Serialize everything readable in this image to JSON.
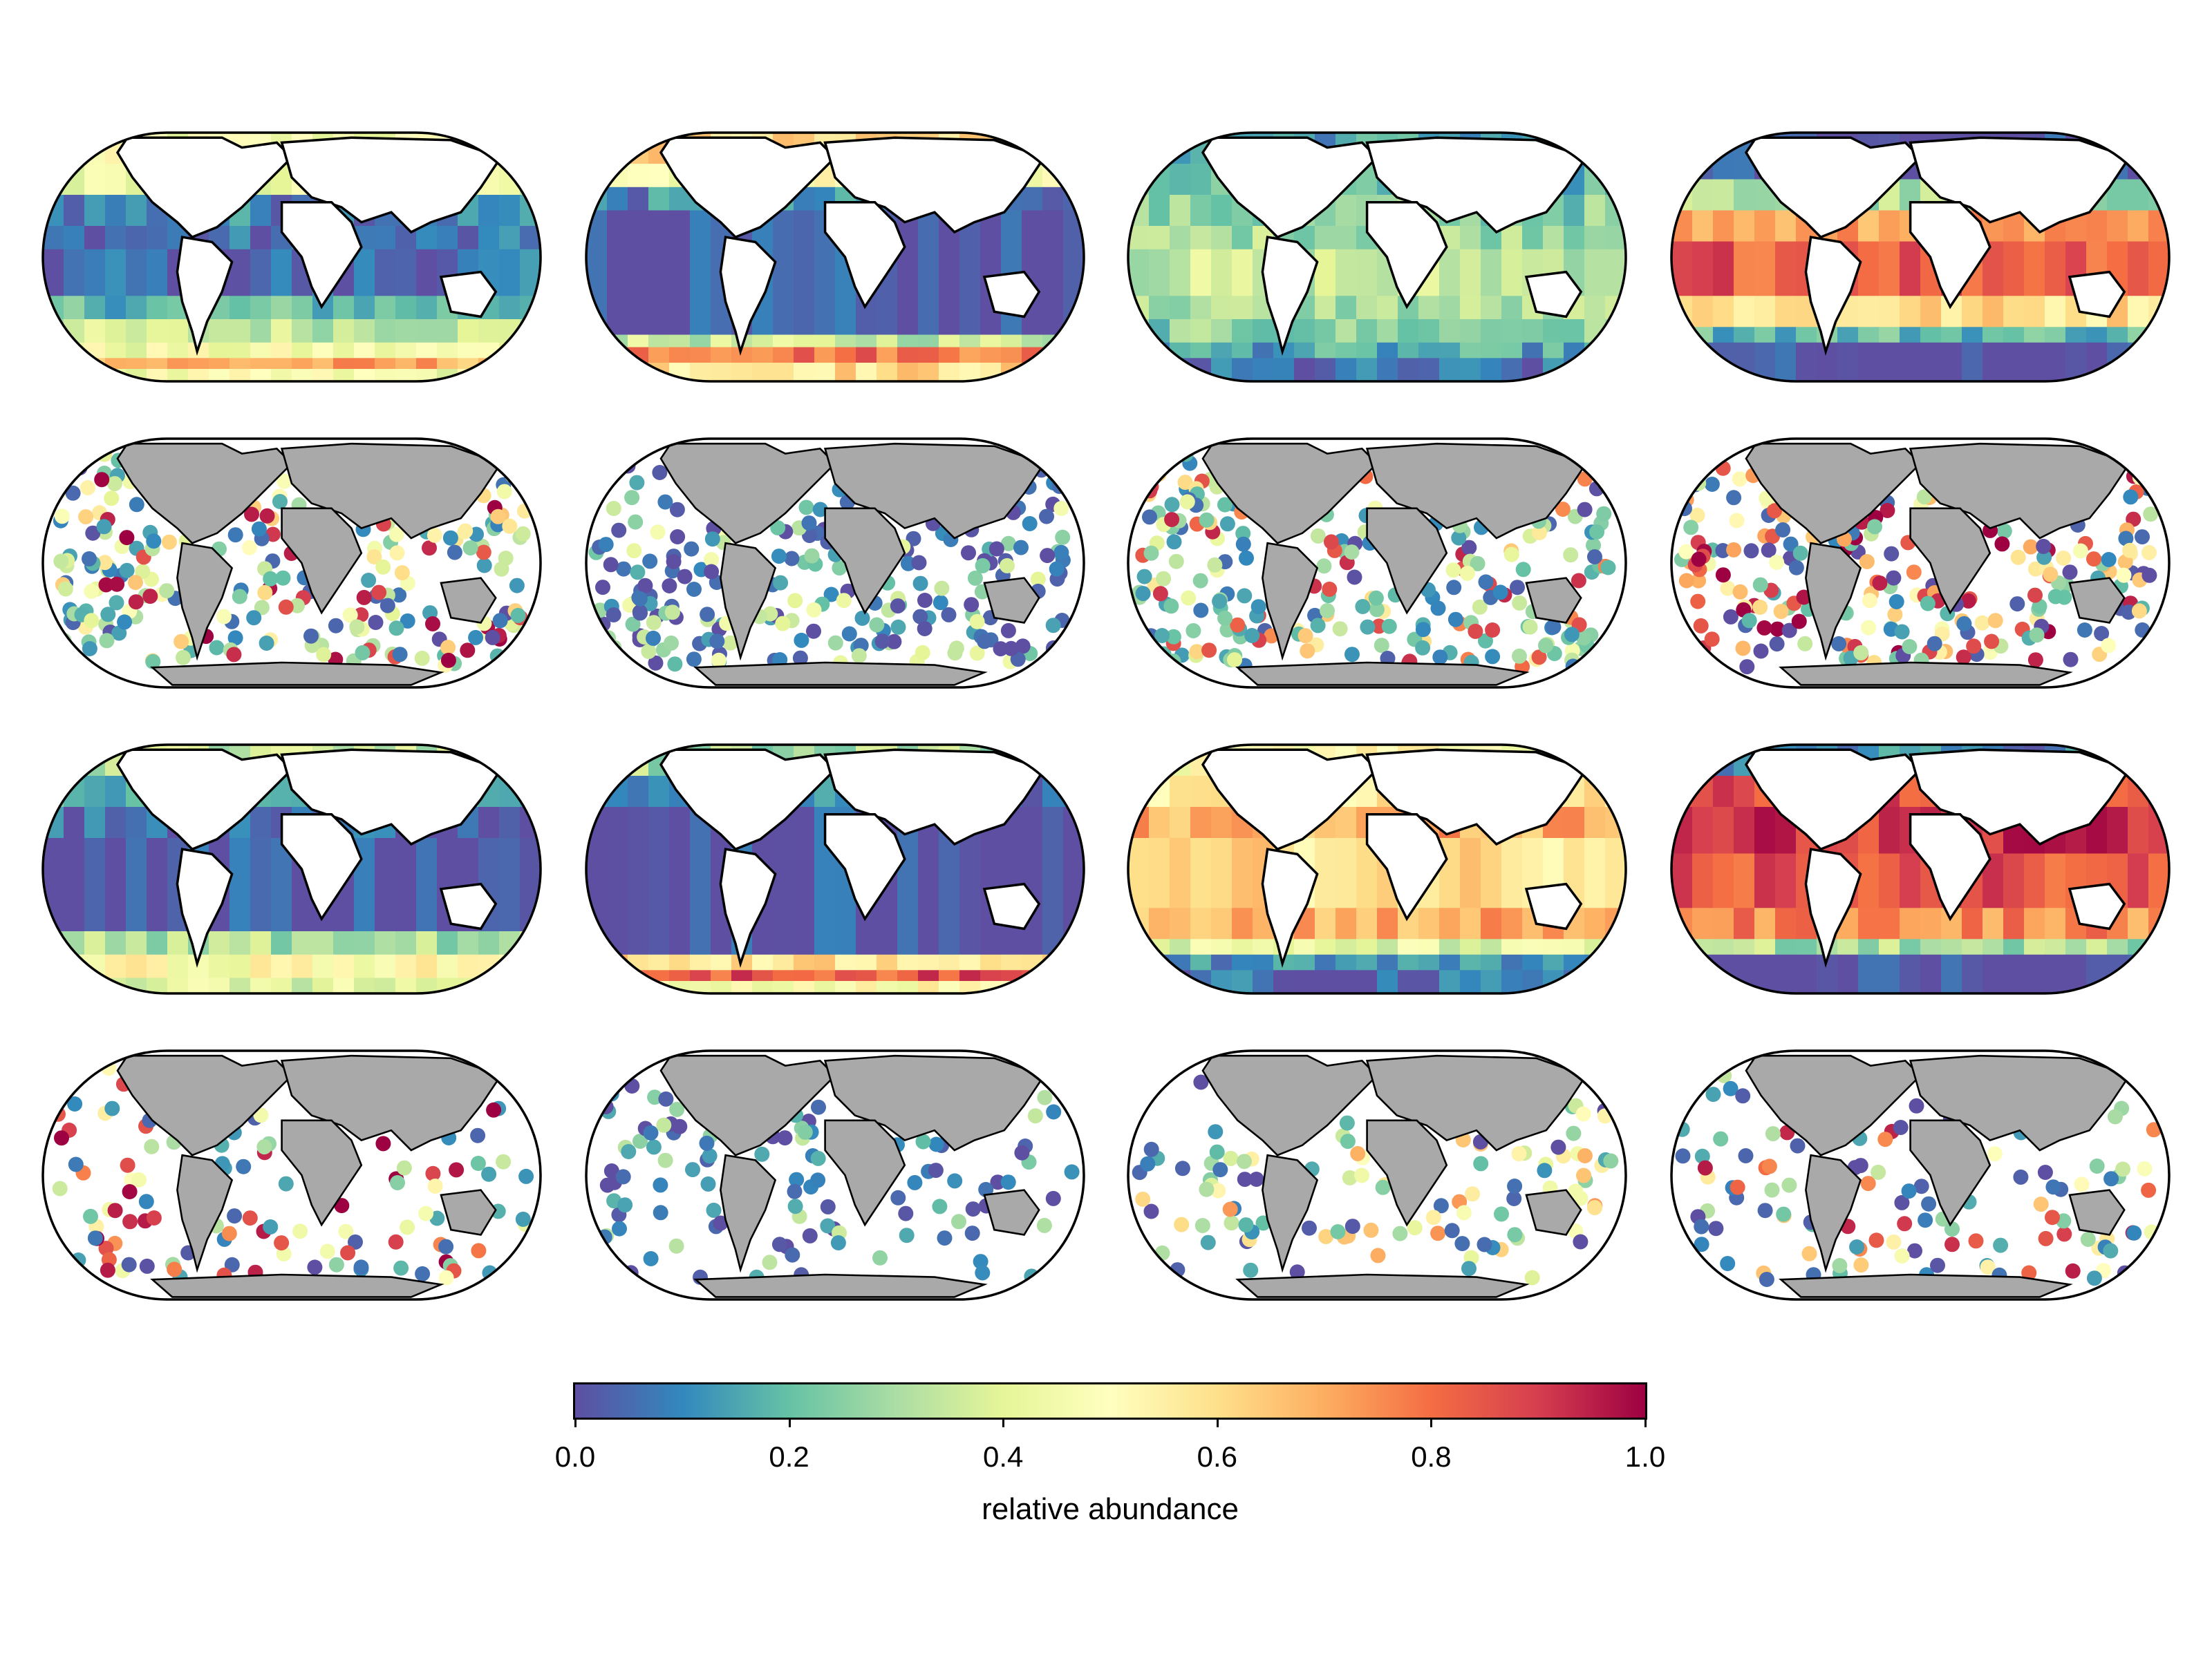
{
  "chart_data": {
    "type": "heatmap",
    "layout": "4 rows x 4 columns of global map panels",
    "colormap": "Spectral_r",
    "colorbar": {
      "label": "relative abundance",
      "range": [
        0.0,
        1.0
      ],
      "ticks": [
        0.0,
        0.2,
        0.4,
        0.6,
        0.8,
        1.0
      ],
      "tick_labels": [
        "0.0",
        "0.2",
        "0.4",
        "0.6",
        "0.8",
        "1.0"
      ],
      "stops": [
        "#5e4fa2",
        "#3288bd",
        "#66c2a5",
        "#abdda4",
        "#e6f598",
        "#ffffbf",
        "#fee08b",
        "#fdae61",
        "#f46d43",
        "#d53e4f",
        "#9e0142"
      ]
    },
    "panels": [
      {
        "row": 1,
        "col": 1,
        "style": "gridded",
        "bands": [
          [
            70,
            90,
            0.45
          ],
          [
            50,
            70,
            0.4
          ],
          [
            30,
            50,
            0.1
          ],
          [
            15,
            30,
            0.05
          ],
          [
            -15,
            15,
            0.05
          ],
          [
            -30,
            -15,
            0.2
          ],
          [
            -45,
            -30,
            0.35
          ],
          [
            -55,
            -45,
            0.45
          ],
          [
            -62,
            -55,
            0.7
          ],
          [
            -70,
            -62,
            0.45
          ]
        ]
      },
      {
        "row": 1,
        "col": 2,
        "style": "gridded",
        "bands": [
          [
            70,
            90,
            0.6
          ],
          [
            55,
            70,
            0.5
          ],
          [
            40,
            55,
            0.1
          ],
          [
            -40,
            40,
            0.0
          ],
          [
            -48,
            -40,
            0.35
          ],
          [
            -58,
            -48,
            0.8
          ],
          [
            -70,
            -58,
            0.6
          ]
        ]
      },
      {
        "row": 1,
        "col": 3,
        "style": "gridded",
        "bands": [
          [
            70,
            90,
            0.15
          ],
          [
            50,
            70,
            0.2
          ],
          [
            30,
            50,
            0.25
          ],
          [
            15,
            30,
            0.3
          ],
          [
            -15,
            15,
            0.35
          ],
          [
            -30,
            -15,
            0.3
          ],
          [
            -45,
            -30,
            0.25
          ],
          [
            -55,
            -45,
            0.15
          ],
          [
            -70,
            -55,
            0.05
          ]
        ]
      },
      {
        "row": 1,
        "col": 4,
        "style": "gridded",
        "bands": [
          [
            60,
            90,
            0.0
          ],
          [
            40,
            60,
            0.3
          ],
          [
            20,
            40,
            0.7
          ],
          [
            -15,
            20,
            0.85
          ],
          [
            -35,
            -15,
            0.6
          ],
          [
            -45,
            -35,
            0.2
          ],
          [
            -70,
            -45,
            0.0
          ]
        ]
      },
      {
        "row": 2,
        "col": 1,
        "style": "observed",
        "sample_values": [
          0.05,
          0.1,
          0.2,
          0.3,
          0.4,
          0.5,
          0.05,
          0.9,
          1.0,
          0.15,
          0.35,
          0.6
        ]
      },
      {
        "row": 2,
        "col": 2,
        "style": "observed",
        "sample_values": [
          0.0,
          0.05,
          0.1,
          0.0,
          0.2,
          0.4,
          0.05,
          0.0,
          0.3,
          0.1
        ]
      },
      {
        "row": 2,
        "col": 3,
        "style": "observed",
        "sample_values": [
          0.1,
          0.2,
          0.3,
          0.6,
          0.8,
          0.4,
          0.25,
          0.15,
          0.05,
          0.9
        ]
      },
      {
        "row": 2,
        "col": 4,
        "style": "observed",
        "sample_values": [
          0.0,
          0.3,
          0.7,
          0.9,
          1.0,
          0.5,
          0.05,
          0.6,
          0.2,
          0.85
        ]
      },
      {
        "row": 3,
        "col": 1,
        "style": "gridded",
        "bands": [
          [
            70,
            90,
            0.35
          ],
          [
            50,
            70,
            0.2
          ],
          [
            30,
            50,
            0.05
          ],
          [
            -30,
            30,
            0.0
          ],
          [
            -45,
            -30,
            0.3
          ],
          [
            -60,
            -45,
            0.5
          ],
          [
            -70,
            -60,
            0.4
          ]
        ]
      },
      {
        "row": 3,
        "col": 2,
        "style": "gridded",
        "bands": [
          [
            70,
            90,
            0.3
          ],
          [
            50,
            70,
            0.1
          ],
          [
            -45,
            50,
            0.0
          ],
          [
            -55,
            -45,
            0.6
          ],
          [
            -62,
            -55,
            0.85
          ],
          [
            -70,
            -62,
            0.5
          ]
        ]
      },
      {
        "row": 3,
        "col": 3,
        "style": "gridded",
        "bands": [
          [
            70,
            90,
            0.5
          ],
          [
            50,
            70,
            0.55
          ],
          [
            30,
            50,
            0.7
          ],
          [
            -15,
            30,
            0.6
          ],
          [
            -35,
            -15,
            0.7
          ],
          [
            -45,
            -35,
            0.4
          ],
          [
            -55,
            -45,
            0.1
          ],
          [
            -70,
            -55,
            0.05
          ]
        ]
      },
      {
        "row": 3,
        "col": 4,
        "style": "gridded",
        "bands": [
          [
            70,
            90,
            0.1
          ],
          [
            50,
            70,
            0.85
          ],
          [
            20,
            50,
            0.9
          ],
          [
            -15,
            20,
            0.85
          ],
          [
            -35,
            -15,
            0.75
          ],
          [
            -45,
            -35,
            0.3
          ],
          [
            -70,
            -45,
            0.0
          ]
        ]
      },
      {
        "row": 4,
        "col": 1,
        "style": "observed",
        "sample_values": [
          1.0,
          0.9,
          0.3,
          0.4,
          0.2,
          0.1,
          0.05,
          0.5,
          0.8,
          0.15
        ]
      },
      {
        "row": 4,
        "col": 2,
        "style": "observed",
        "sample_values": [
          0.0,
          0.05,
          0.1,
          0.2,
          0.0,
          0.3,
          0.05,
          0.15
        ]
      },
      {
        "row": 4,
        "col": 3,
        "style": "observed",
        "sample_values": [
          0.0,
          0.3,
          0.5,
          0.6,
          0.7,
          0.2,
          0.1,
          0.4,
          0.05
        ]
      },
      {
        "row": 4,
        "col": 4,
        "style": "observed",
        "sample_values": [
          0.0,
          0.8,
          0.9,
          0.5,
          0.2,
          0.1,
          0.05,
          0.6,
          0.3
        ]
      }
    ]
  }
}
